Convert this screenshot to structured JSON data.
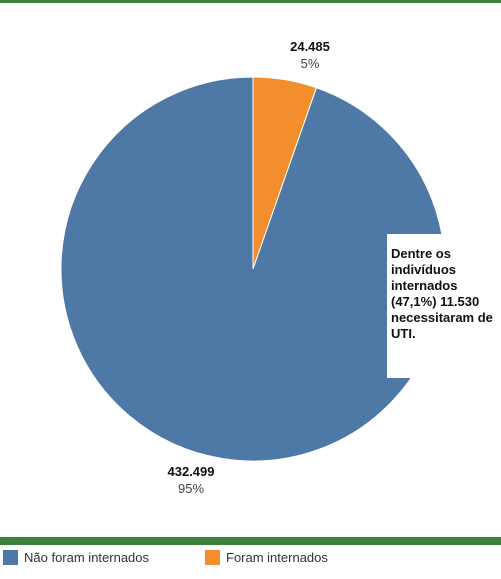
{
  "colors": {
    "rule": "#3f7f3f",
    "not_hospitalized": "#4e79a7",
    "hospitalized": "#f28e2b"
  },
  "chart_data": {
    "type": "pie",
    "slices": [
      {
        "name": "Não foram internados",
        "value": 432499,
        "value_label": "432.499",
        "percent_label": "95%",
        "color": "#4e79a7"
      },
      {
        "name": "Foram internados",
        "value": 24485,
        "value_label": "24.485",
        "percent_label": "5%",
        "color": "#f28e2b"
      }
    ],
    "annotation": "Dentre os indivíduos internados (47,1%) 11.530 necessitaram de UTI.",
    "legend_placement": "bottom"
  },
  "legend": {
    "items": [
      {
        "label": "Não foram internados",
        "color": "#4e79a7"
      },
      {
        "label": "Foram internados",
        "color": "#f28e2b"
      }
    ]
  }
}
